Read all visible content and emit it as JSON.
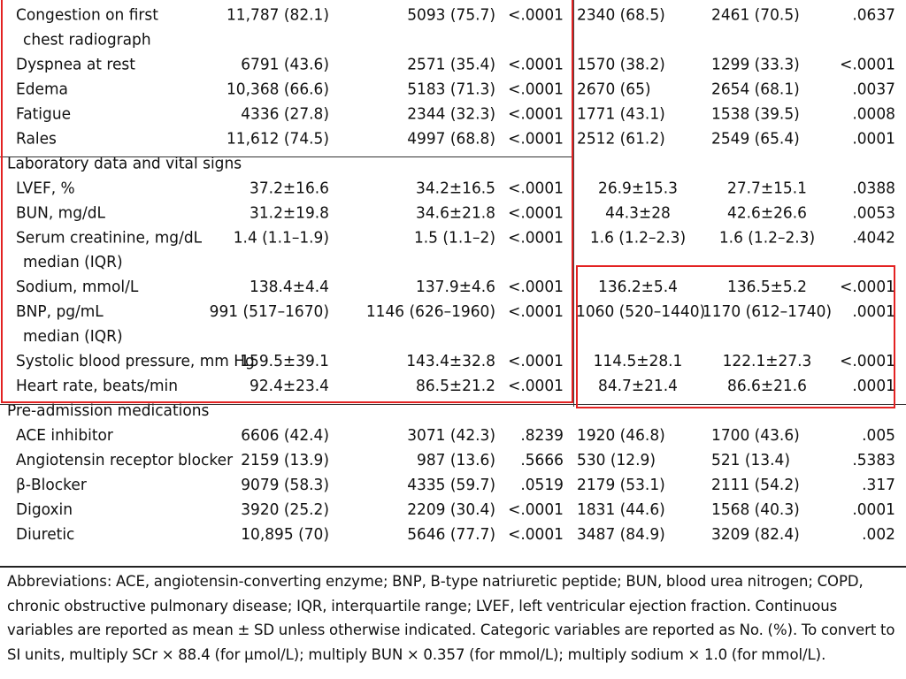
{
  "rows": [
    {
      "label": "Congestion on first",
      "c1": "11,787 (82.1)",
      "c2": "5093 (75.7)",
      "c3": "<.0001",
      "c4": "2340 (68.5)",
      "c5": "2461 (70.5)",
      "c6": ".0637"
    },
    {
      "label": "chest radiograph",
      "indent": "sub"
    },
    {
      "label": "Dyspnea at rest",
      "c1": "6791 (43.6)",
      "c2": "2571 (35.4)",
      "c3": "<.0001",
      "c4": "1570 (38.2)",
      "c5": "1299 (33.3)",
      "c6": "<.0001"
    },
    {
      "label": "Edema",
      "c1": "10,368 (66.6)",
      "c2": "5183 (71.3)",
      "c3": "<.0001",
      "c4": "2670 (65)",
      "c5": "2654 (68.1)",
      "c6": ".0037"
    },
    {
      "label": "Fatigue",
      "c1": "4336 (27.8)",
      "c2": "2344 (32.3)",
      "c3": "<.0001",
      "c4": "1771 (43.1)",
      "c5": "1538 (39.5)",
      "c6": ".0008"
    },
    {
      "label": "Rales",
      "c1": "11,612 (74.5)",
      "c2": "4997 (68.8)",
      "c3": "<.0001",
      "c4": "2512 (61.2)",
      "c5": "2549 (65.4)",
      "c6": ".0001"
    },
    {
      "label": "Laboratory data and vital signs",
      "indent": "section"
    },
    {
      "label": "LVEF, %",
      "c1": "37.2±16.6",
      "c2": "34.2±16.5",
      "c3": "<.0001",
      "c4": "26.9±15.3",
      "c5": "27.7±15.1",
      "c6": ".0388",
      "center": true
    },
    {
      "label": "BUN, mg/dL",
      "c1": "31.2±19.8",
      "c2": "34.6±21.8",
      "c3": "<.0001",
      "c4": "44.3±28",
      "c5": "42.6±26.6",
      "c6": ".0053",
      "center": true
    },
    {
      "label": "Serum creatinine, mg/dL",
      "c1": "1.4 (1.1–1.9)",
      "c2": "1.5 (1.1–2)",
      "c3": "<.0001",
      "c4": "1.6 (1.2–2.3)",
      "c5": "1.6 (1.2–2.3)",
      "c6": ".4042",
      "center": true
    },
    {
      "label": "median (IQR)",
      "indent": "sub"
    },
    {
      "label": "Sodium, mmol/L",
      "c1": "138.4±4.4",
      "c2": "137.9±4.6",
      "c3": "<.0001",
      "c4": "136.2±5.4",
      "c5": "136.5±5.2",
      "c6": "<.0001",
      "center": true
    },
    {
      "label": "BNP, pg/mL",
      "c1": "991 (517–1670)",
      "c2": "1146 (626–1960)",
      "c3": "<.0001",
      "c4": "1060 (520–1440)",
      "c5": "1170 (612–1740)",
      "c6": ".0001",
      "center": true
    },
    {
      "label": "median (IQR)",
      "indent": "sub"
    },
    {
      "label": "Systolic blood pressure, mm Hg",
      "c1": "159.5±39.1",
      "c2": "143.4±32.8",
      "c3": "<.0001",
      "c4": "114.5±28.1",
      "c5": "122.1±27.3",
      "c6": "<.0001",
      "center": true
    },
    {
      "label": "Heart rate, beats/min",
      "c1": "92.4±23.4",
      "c2": "86.5±21.2",
      "c3": "<.0001",
      "c4": "84.7±21.4",
      "c5": "86.6±21.6",
      "c6": ".0001",
      "center": true
    },
    {
      "label": "Pre-admission medications",
      "indent": "section"
    },
    {
      "label": "ACE inhibitor",
      "c1": "6606 (42.4)",
      "c2": "3071 (42.3)",
      "c3": ".8239",
      "c4": "1920 (46.8)",
      "c5": "1700 (43.6)",
      "c6": ".005"
    },
    {
      "label": "Angiotensin receptor blocker",
      "c1": "2159 (13.9)",
      "c2": "987 (13.6)",
      "c3": ".5666",
      "c4": "530 (12.9)",
      "c5": "521 (13.4)",
      "c6": ".5383"
    },
    {
      "label": "β-Blocker",
      "c1": "9079 (58.3)",
      "c2": "4335 (59.7)",
      "c3": ".0519",
      "c4": "2179 (53.1)",
      "c5": "2111 (54.2)",
      "c6": ".317"
    },
    {
      "label": "Digoxin",
      "c1": "3920 (25.2)",
      "c2": "2209 (30.4)",
      "c3": "<.0001",
      "c4": "1831 (44.6)",
      "c5": "1568 (40.3)",
      "c6": ".0001"
    },
    {
      "label": "Diuretic",
      "c1": "10,895 (70)",
      "c2": "5646 (77.7)",
      "c3": "<.0001",
      "c4": "3487 (84.9)",
      "c5": "3209 (82.4)",
      "c6": ".002"
    }
  ],
  "footnote": "Abbreviations: ACE, angiotensin-converting enzyme; BNP, B-type natriuretic peptide; BUN, blood urea nitrogen; COPD, chronic obstructive pulmonary disease; IQR, interquartile range; LVEF, left ventricular ejection fraction. Continuous variables are reported as mean ± SD unless otherwise indicated. Categoric variables are reported as No. (%). To convert to SI units, multiply SCr × 88.4 (for μmol/L); multiply BUN × 0.357 (for mmol/L); multiply sodium × 1.0 (for mmol/L).",
  "colors": {
    "highlight_box": "#e32222",
    "rule": "#333333",
    "text": "#111111"
  }
}
